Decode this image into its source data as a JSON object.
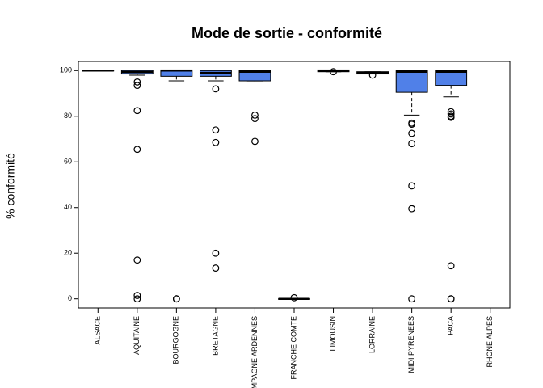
{
  "chart_data": {
    "type": "boxplot",
    "title": "Mode de sortie - conformité",
    "ylabel": "% conformité",
    "categories": [
      "ALSACE",
      "AQUITAINE",
      "BOURGOGNE",
      "BRETAGNE",
      "CHAMPAGNE ARDENNES",
      "FRANCHE COMTE",
      "LIMOUSIN",
      "LORRAINE",
      "MIDI PYRENEES",
      "PACA",
      "RHONE ALPES"
    ],
    "color": "#5080e8",
    "boxes": [
      {
        "whisker_low": 100,
        "q1": 100,
        "median": 100,
        "q3": 100,
        "whisker_high": 100,
        "outliers": []
      },
      {
        "whisker_low": 98,
        "q1": 98.5,
        "median": 99.3,
        "q3": 100,
        "whisker_high": 100,
        "outliers": [
          95,
          93.5,
          82.5,
          65.5,
          17,
          1.5,
          0
        ]
      },
      {
        "whisker_low": 95.5,
        "q1": 97.5,
        "median": 100,
        "q3": 100.3,
        "whisker_high": 100.3,
        "outliers": [
          0,
          0
        ]
      },
      {
        "whisker_low": 95.5,
        "q1": 97.5,
        "median": 99,
        "q3": 100,
        "whisker_high": 100,
        "outliers": [
          92,
          74,
          68.5,
          20,
          13.5
        ]
      },
      {
        "whisker_low": 95,
        "q1": 95.5,
        "median": 99.5,
        "q3": 100,
        "whisker_high": 100,
        "outliers": [
          80.5,
          79,
          69
        ]
      },
      {
        "whisker_low": 0,
        "q1": 0,
        "median": 0,
        "q3": 0,
        "whisker_high": 0,
        "outliers": [
          0.5
        ]
      },
      {
        "whisker_low": 99.5,
        "q1": 99.5,
        "median": 100,
        "q3": 100.3,
        "whisker_high": 100.3,
        "outliers": [
          99.5
        ]
      },
      {
        "whisker_low": 98.5,
        "q1": 98.5,
        "median": 99,
        "q3": 99.5,
        "whisker_high": 99.5,
        "outliers": [
          98
        ]
      },
      {
        "whisker_low": 80.5,
        "q1": 90.5,
        "median": 99.5,
        "q3": 100,
        "whisker_high": 100,
        "outliers": [
          77,
          76.5,
          72.5,
          68,
          49.5,
          39.5,
          0
        ]
      },
      {
        "whisker_low": 88.5,
        "q1": 93.5,
        "median": 99.5,
        "q3": 100,
        "whisker_high": 100,
        "outliers": [
          82,
          81,
          80,
          79.5,
          14.5,
          0,
          0
        ]
      },
      null
    ],
    "ylim": [
      -4,
      104
    ],
    "yticks": [
      0,
      20,
      40,
      60,
      80,
      100
    ]
  }
}
